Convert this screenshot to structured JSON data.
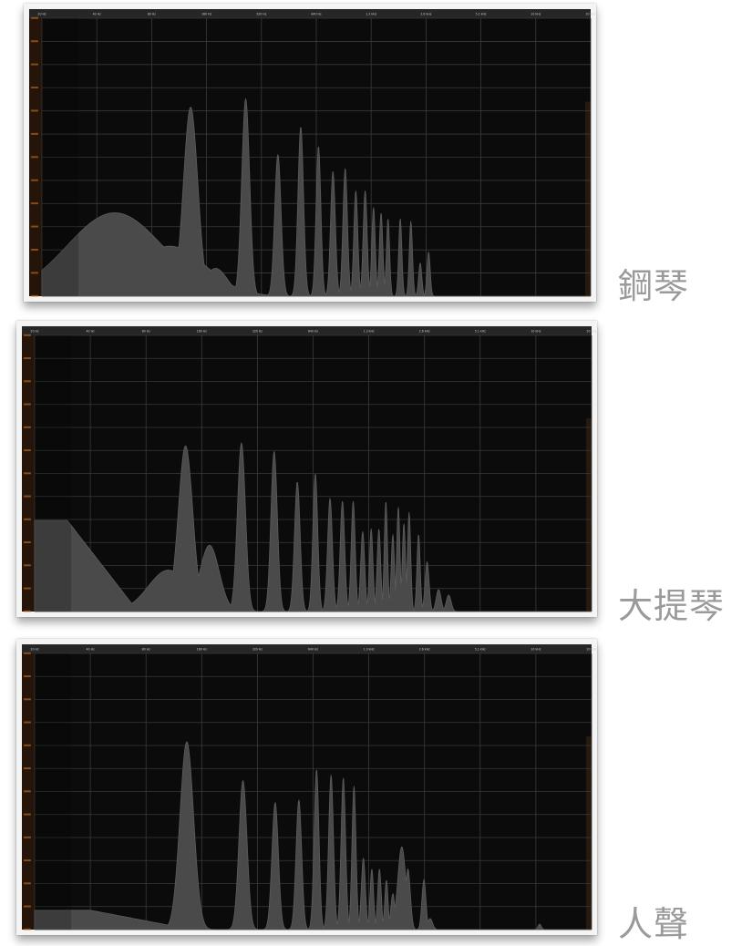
{
  "labels": {
    "piano": "鋼琴",
    "violin": "大提琴",
    "voice": "人聲"
  },
  "colors": {
    "background": "#0b0b0b",
    "grid": "#3a3a3a",
    "spectrum_fill": "#4a4a4a",
    "spectrum_edge": "#5c5c5c",
    "db_scale": "#d8781f",
    "header": "#262626",
    "label": "#9a9a9a"
  },
  "chart_data": [
    {
      "type": "area",
      "name": "鋼琴",
      "x_ticks": [
        "20 Hz",
        "40 Hz",
        "80 Hz",
        "160 Hz",
        "320 Hz",
        "640 Hz",
        "1.3 kHz",
        "2.6 kHz",
        "5.1 kHz",
        "10 kHz",
        "20 kHz"
      ],
      "ylim": [
        0,
        1
      ],
      "peaks": [
        {
          "f": 50,
          "a": 0.3,
          "w": 0.6
        },
        {
          "f": 85,
          "a": 0.12,
          "w": 0.5
        },
        {
          "f": 100,
          "a": 0.18,
          "w": 0.45
        },
        {
          "f": 130,
          "a": 0.68,
          "w": 0.09
        },
        {
          "f": 178,
          "a": 0.1,
          "w": 0.15
        },
        {
          "f": 260,
          "a": 0.71,
          "w": 0.05
        },
        {
          "f": 390,
          "a": 0.51,
          "w": 0.04
        },
        {
          "f": 520,
          "a": 0.61,
          "w": 0.035
        },
        {
          "f": 650,
          "a": 0.54,
          "w": 0.03
        },
        {
          "f": 780,
          "a": 0.45,
          "w": 0.03
        },
        {
          "f": 910,
          "a": 0.46,
          "w": 0.028
        },
        {
          "f": 1040,
          "a": 0.38,
          "w": 0.025
        },
        {
          "f": 1170,
          "a": 0.38,
          "w": 0.025
        },
        {
          "f": 1300,
          "a": 0.32,
          "w": 0.022
        },
        {
          "f": 1430,
          "a": 0.3,
          "w": 0.022
        },
        {
          "f": 1560,
          "a": 0.28,
          "w": 0.02
        },
        {
          "f": 1820,
          "a": 0.28,
          "w": 0.02
        },
        {
          "f": 2080,
          "a": 0.27,
          "w": 0.02
        },
        {
          "f": 2340,
          "a": 0.12,
          "w": 0.02
        },
        {
          "f": 2600,
          "a": 0.16,
          "w": 0.02
        }
      ]
    },
    {
      "type": "area",
      "name": "大提琴",
      "x_ticks": [
        "20 Hz",
        "40 Hz",
        "80 Hz",
        "160 Hz",
        "320 Hz",
        "640 Hz",
        "1.3 kHz",
        "2.6 kHz",
        "5.1 kHz",
        "10 kHz",
        "20 kHz"
      ],
      "ylim": [
        0,
        1
      ],
      "plateau": {
        "a": 0.33,
        "f_end": 30,
        "f_zero": 72
      },
      "peaks": [
        {
          "f": 105,
          "a": 0.15,
          "w": 0.25
        },
        {
          "f": 130,
          "a": 0.6,
          "w": 0.09
        },
        {
          "f": 175,
          "a": 0.24,
          "w": 0.12
        },
        {
          "f": 260,
          "a": 0.61,
          "w": 0.05
        },
        {
          "f": 390,
          "a": 0.58,
          "w": 0.04
        },
        {
          "f": 520,
          "a": 0.47,
          "w": 0.035
        },
        {
          "f": 650,
          "a": 0.5,
          "w": 0.03
        },
        {
          "f": 780,
          "a": 0.41,
          "w": 0.03
        },
        {
          "f": 910,
          "a": 0.4,
          "w": 0.028
        },
        {
          "f": 1040,
          "a": 0.4,
          "w": 0.025
        },
        {
          "f": 1170,
          "a": 0.29,
          "w": 0.025
        },
        {
          "f": 1300,
          "a": 0.3,
          "w": 0.022
        },
        {
          "f": 1430,
          "a": 0.3,
          "w": 0.022
        },
        {
          "f": 1560,
          "a": 0.4,
          "w": 0.02
        },
        {
          "f": 1700,
          "a": 0.28,
          "w": 0.02
        },
        {
          "f": 1820,
          "a": 0.38,
          "w": 0.02
        },
        {
          "f": 1950,
          "a": 0.32,
          "w": 0.02
        },
        {
          "f": 2080,
          "a": 0.36,
          "w": 0.02
        },
        {
          "f": 2340,
          "a": 0.28,
          "w": 0.02
        },
        {
          "f": 2600,
          "a": 0.18,
          "w": 0.025
        },
        {
          "f": 3000,
          "a": 0.08,
          "w": 0.03
        },
        {
          "f": 3400,
          "a": 0.06,
          "w": 0.03
        }
      ]
    },
    {
      "type": "area",
      "name": "人聲",
      "x_ticks": [
        "20 Hz",
        "40 Hz",
        "80 Hz",
        "160 Hz",
        "320 Hz",
        "640 Hz",
        "1.3 kHz",
        "2.6 kHz",
        "5.1 kHz",
        "10 kHz",
        "20 kHz"
      ],
      "ylim": [
        0,
        1
      ],
      "plateau": {
        "a": 0.07,
        "f_end": 40,
        "f_zero": 140
      },
      "peaks": [
        {
          "f": 132,
          "a": 0.68,
          "w": 0.085
        },
        {
          "f": 265,
          "a": 0.54,
          "w": 0.05
        },
        {
          "f": 395,
          "a": 0.46,
          "w": 0.04
        },
        {
          "f": 530,
          "a": 0.47,
          "w": 0.035
        },
        {
          "f": 660,
          "a": 0.58,
          "w": 0.03
        },
        {
          "f": 790,
          "a": 0.56,
          "w": 0.03
        },
        {
          "f": 920,
          "a": 0.55,
          "w": 0.028
        },
        {
          "f": 1050,
          "a": 0.52,
          "w": 0.025
        },
        {
          "f": 1180,
          "a": 0.26,
          "w": 0.025
        },
        {
          "f": 1310,
          "a": 0.22,
          "w": 0.022
        },
        {
          "f": 1440,
          "a": 0.22,
          "w": 0.022
        },
        {
          "f": 1570,
          "a": 0.18,
          "w": 0.02
        },
        {
          "f": 1700,
          "a": 0.13,
          "w": 0.025
        },
        {
          "f": 1900,
          "a": 0.3,
          "w": 0.05
        },
        {
          "f": 2050,
          "a": 0.22,
          "w": 0.03
        },
        {
          "f": 2500,
          "a": 0.18,
          "w": 0.025
        },
        {
          "f": 2700,
          "a": 0.04,
          "w": 0.03
        },
        {
          "f": 10500,
          "a": 0.02,
          "w": 0.02
        }
      ]
    }
  ]
}
